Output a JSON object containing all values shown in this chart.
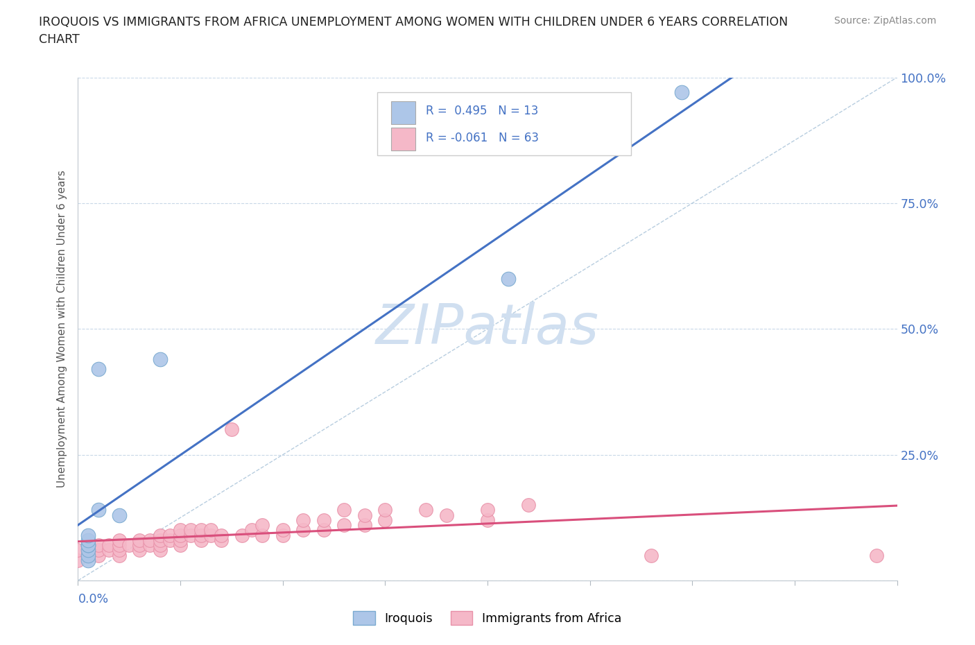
{
  "title_line1": "IROQUOIS VS IMMIGRANTS FROM AFRICA UNEMPLOYMENT AMONG WOMEN WITH CHILDREN UNDER 6 YEARS CORRELATION",
  "title_line2": "CHART",
  "source": "Source: ZipAtlas.com",
  "ylabel": "Unemployment Among Women with Children Under 6 years",
  "xlim": [
    0.0,
    0.4
  ],
  "ylim": [
    0.0,
    1.0
  ],
  "xticks": [
    0.0,
    0.05,
    0.1,
    0.15,
    0.2,
    0.25,
    0.3,
    0.35,
    0.4
  ],
  "ytick_positions": [
    0.0,
    0.25,
    0.5,
    0.75,
    1.0
  ],
  "yticklabels": [
    "",
    "25.0%",
    "50.0%",
    "75.0%",
    "100.0%"
  ],
  "r_iroquois": 0.495,
  "n_iroquois": 13,
  "r_africa": -0.061,
  "n_africa": 63,
  "iroquois_color": "#adc6e8",
  "africa_color": "#f5b8c8",
  "iroquois_edge_color": "#7aaad0",
  "africa_edge_color": "#e890a8",
  "iroquois_line_color": "#4472c4",
  "africa_line_color": "#d94f7c",
  "ref_line_color": "#b0c8dc",
  "watermark": "ZIPatlas",
  "watermark_color": "#d0dff0",
  "iroquois_x": [
    0.005,
    0.005,
    0.005,
    0.005,
    0.005,
    0.005,
    0.005,
    0.01,
    0.01,
    0.02,
    0.04,
    0.21,
    0.295
  ],
  "iroquois_y": [
    0.04,
    0.05,
    0.06,
    0.07,
    0.07,
    0.08,
    0.09,
    0.14,
    0.42,
    0.13,
    0.44,
    0.6,
    0.97
  ],
  "africa_x": [
    0.0,
    0.0,
    0.005,
    0.005,
    0.005,
    0.01,
    0.01,
    0.01,
    0.015,
    0.015,
    0.02,
    0.02,
    0.02,
    0.02,
    0.025,
    0.03,
    0.03,
    0.03,
    0.035,
    0.035,
    0.04,
    0.04,
    0.04,
    0.04,
    0.045,
    0.045,
    0.05,
    0.05,
    0.05,
    0.05,
    0.055,
    0.055,
    0.06,
    0.06,
    0.06,
    0.065,
    0.065,
    0.07,
    0.07,
    0.075,
    0.08,
    0.085,
    0.09,
    0.09,
    0.1,
    0.1,
    0.11,
    0.11,
    0.12,
    0.12,
    0.13,
    0.13,
    0.14,
    0.14,
    0.15,
    0.15,
    0.17,
    0.18,
    0.2,
    0.2,
    0.22,
    0.28,
    0.39
  ],
  "africa_y": [
    0.04,
    0.06,
    0.05,
    0.06,
    0.07,
    0.05,
    0.06,
    0.07,
    0.06,
    0.07,
    0.05,
    0.06,
    0.07,
    0.08,
    0.07,
    0.06,
    0.07,
    0.08,
    0.07,
    0.08,
    0.06,
    0.07,
    0.08,
    0.09,
    0.08,
    0.09,
    0.07,
    0.08,
    0.09,
    0.1,
    0.09,
    0.1,
    0.08,
    0.09,
    0.1,
    0.09,
    0.1,
    0.08,
    0.09,
    0.3,
    0.09,
    0.1,
    0.09,
    0.11,
    0.09,
    0.1,
    0.1,
    0.12,
    0.1,
    0.12,
    0.11,
    0.14,
    0.11,
    0.13,
    0.12,
    0.14,
    0.14,
    0.13,
    0.12,
    0.14,
    0.15,
    0.05,
    0.05
  ]
}
